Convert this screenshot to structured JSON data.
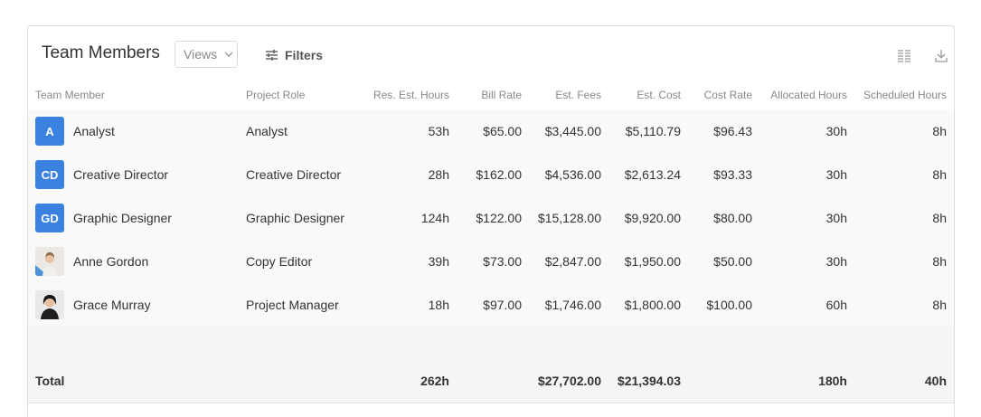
{
  "panel": {
    "title": "Team Members",
    "views_label": "Views",
    "filters_label": "Filters"
  },
  "icons": {
    "filter": "sliders-icon",
    "columns": "columns-icon",
    "download": "download-icon"
  },
  "colors": {
    "initials_avatar": "#3b82e0",
    "row_background": "#f9f9f9",
    "total_background": "#f5f5f5"
  },
  "table": {
    "headers": [
      "Team Member",
      "Project Role",
      "Res. Est. Hours",
      "Bill Rate",
      "Est. Fees",
      "Est. Cost",
      "Cost Rate",
      "Allocated Hours",
      "Scheduled Hours"
    ],
    "rows": [
      {
        "initials": "A",
        "name": "Analyst",
        "role": "Analyst",
        "res_hours": "53h",
        "bill_rate": "$65.00",
        "est_fees": "$3,445.00",
        "est_cost": "$5,110.79",
        "cost_rate": "$96.43",
        "allocated": "30h",
        "scheduled": "8h"
      },
      {
        "initials": "CD",
        "name": "Creative Director",
        "role": "Creative Director",
        "res_hours": "28h",
        "bill_rate": "$162.00",
        "est_fees": "$4,536.00",
        "est_cost": "$2,613.24",
        "cost_rate": "$93.33",
        "allocated": "30h",
        "scheduled": "8h"
      },
      {
        "initials": "GD",
        "name": "Graphic Designer",
        "role": "Graphic Designer",
        "res_hours": "124h",
        "bill_rate": "$122.00",
        "est_fees": "$15,128.00",
        "est_cost": "$9,920.00",
        "cost_rate": "$80.00",
        "allocated": "30h",
        "scheduled": "8h"
      },
      {
        "initials": "",
        "name": "Anne Gordon",
        "role": "Copy Editor",
        "res_hours": "39h",
        "bill_rate": "$73.00",
        "est_fees": "$2,847.00",
        "est_cost": "$1,950.00",
        "cost_rate": "$50.00",
        "allocated": "30h",
        "scheduled": "8h"
      },
      {
        "initials": "",
        "name": "Grace Murray",
        "role": "Project Manager",
        "res_hours": "18h",
        "bill_rate": "$97.00",
        "est_fees": "$1,746.00",
        "est_cost": "$1,800.00",
        "cost_rate": "$100.00",
        "allocated": "60h",
        "scheduled": "8h"
      }
    ],
    "total": {
      "label": "Total",
      "res_hours": "262h",
      "est_fees": "$27,702.00",
      "est_cost": "$21,394.03",
      "allocated": "180h",
      "scheduled": "40h"
    }
  }
}
